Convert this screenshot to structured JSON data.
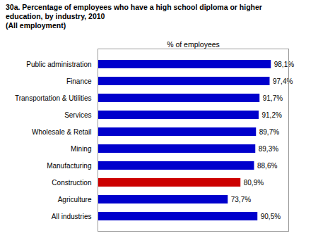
{
  "chart_data": {
    "type": "bar",
    "orientation": "horizontal",
    "title": "30a. Percentage of employees who have a high school diploma or higher\neducation, by industry, 2010\n(All employment)",
    "xlabel": "% of employees",
    "categories": [
      "All industries",
      "Agriculture",
      "Construction",
      "Manufacturing",
      "Mining",
      "Wholesale & Retail",
      "Services",
      "Transportation & Utilities",
      "Finance",
      "Public administration"
    ],
    "values": [
      90.5,
      73.7,
      80.9,
      88.6,
      89.3,
      89.7,
      91.2,
      91.7,
      97.4,
      98.1
    ],
    "value_labels": [
      "90,5%",
      "73,7%",
      "80,9%",
      "88,6%",
      "89,3%",
      "89,7%",
      "91,2%",
      "91,7%",
      "97,4%",
      "98,1%"
    ],
    "colors": [
      "#0000cc",
      "#0000cc",
      "#cc0000",
      "#0000cc",
      "#0000cc",
      "#0000cc",
      "#0000cc",
      "#0000cc",
      "#0000cc",
      "#0000cc"
    ],
    "xlim": [
      0,
      108
    ],
    "xticks": [],
    "data_labels": true,
    "tick_labels": "y",
    "grid": false
  }
}
